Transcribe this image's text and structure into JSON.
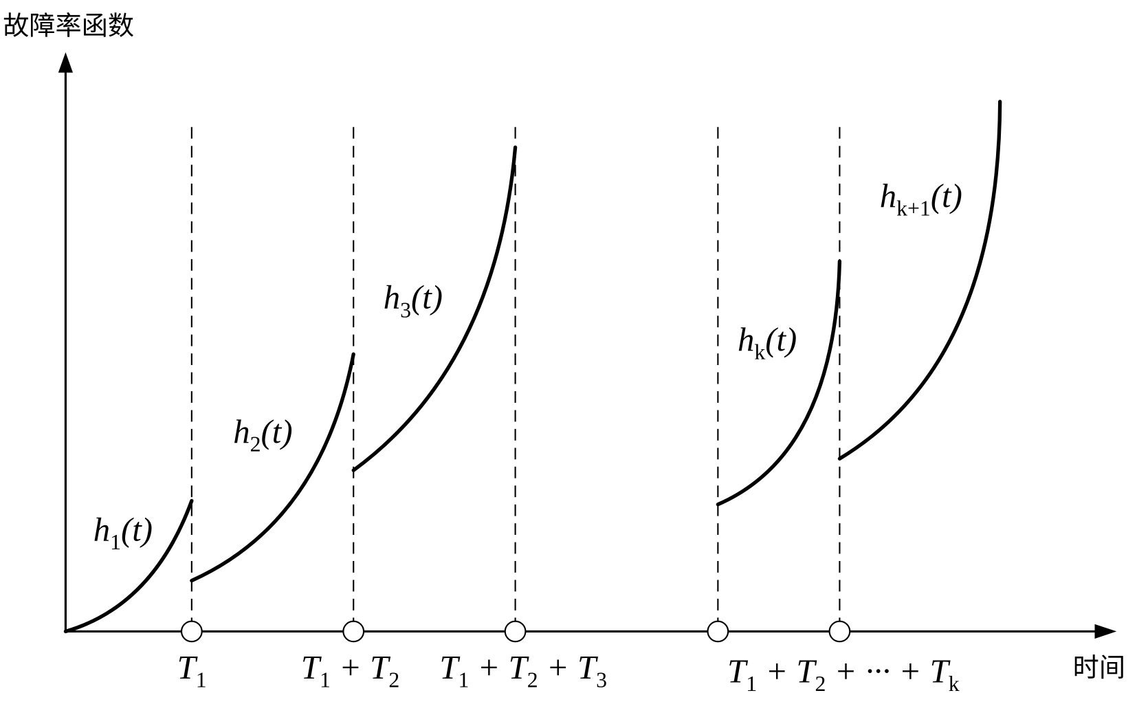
{
  "y_axis_label": "故障率函数",
  "x_axis_label": "时间",
  "curve_labels": [
    [
      {
        "text": "h"
      },
      {
        "sub": "1"
      },
      {
        "text": "(t)"
      }
    ],
    [
      {
        "text": "h"
      },
      {
        "sub": "2"
      },
      {
        "text": "(t)"
      }
    ],
    [
      {
        "text": "h"
      },
      {
        "sub": "3"
      },
      {
        "text": "(t)"
      }
    ],
    [
      {
        "text": "h"
      },
      {
        "sub": "k"
      },
      {
        "text": "(t)"
      }
    ],
    [
      {
        "text": "h"
      },
      {
        "sub": "k+1"
      },
      {
        "text": "(t)"
      }
    ]
  ],
  "x_ticks": [
    [
      {
        "text": "T"
      },
      {
        "sub": "1"
      }
    ],
    [
      {
        "text": "T"
      },
      {
        "sub": "1"
      },
      {
        "text": " + T"
      },
      {
        "sub": "2"
      }
    ],
    [
      {
        "text": "T"
      },
      {
        "sub": "1"
      },
      {
        "text": " + T"
      },
      {
        "sub": "2"
      },
      {
        "text": " + T"
      },
      {
        "sub": "3"
      }
    ],
    [
      {
        "text": "T"
      },
      {
        "sub": "1"
      },
      {
        "text": " + T"
      },
      {
        "sub": "2"
      },
      {
        "text": " + ··· + T"
      },
      {
        "sub": "k"
      }
    ]
  ]
}
